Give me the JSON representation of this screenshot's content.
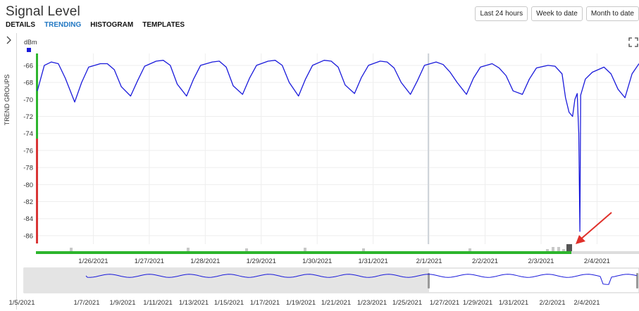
{
  "header": {
    "title": "Signal Level",
    "tabs": [
      {
        "label": "DETAILS",
        "active": false
      },
      {
        "label": "TRENDING",
        "active": true
      },
      {
        "label": "HISTOGRAM",
        "active": false
      },
      {
        "label": "TEMPLATES",
        "active": false
      }
    ],
    "range_buttons": [
      "Last 24 hours",
      "Week to date",
      "Month to date"
    ]
  },
  "side_panel": {
    "label": "TREND GROUPS",
    "icon": "chevron-right-icon"
  },
  "expand_icon": "fullscreen-icon",
  "colors": {
    "series": "#1a1adb",
    "status_good": "#2db52d",
    "status_bad": "#d93535",
    "annotation_arrow": "#e0302a",
    "grid": "#eeeeee",
    "navigator_shade": "#e4e4e4"
  },
  "chart_data": [
    {
      "type": "line",
      "title": "",
      "ylabel": "dBm",
      "xlabel": "",
      "grid": true,
      "ylim": [
        -87,
        -64.6
      ],
      "y_ticks": [
        -66,
        -68,
        -70,
        -72,
        -74,
        -76,
        -78,
        -80,
        -82,
        -84,
        -86
      ],
      "x_range": [
        "2021-01-25",
        "2021-02-04 18:00"
      ],
      "x_ticks": [
        "1/26/2021",
        "1/27/2021",
        "1/28/2021",
        "1/29/2021",
        "1/30/2021",
        "1/31/2021",
        "2/1/2021",
        "2/2/2021",
        "2/3/2021",
        "2/4/2021"
      ],
      "series": [
        {
          "x": [
            "2021-01-25 00:00",
            "2021-01-25 03:00",
            "2021-01-25 06:00",
            "2021-01-25 09:00",
            "2021-01-25 12:00",
            "2021-01-25 16:00",
            "2021-01-25 19:00",
            "2021-01-25 22:00",
            "2021-01-26 03:00",
            "2021-01-26 06:00",
            "2021-01-26 09:00",
            "2021-01-26 12:00",
            "2021-01-26 16:00",
            "2021-01-26 19:00",
            "2021-01-26 22:00",
            "2021-01-27 03:00",
            "2021-01-27 06:00",
            "2021-01-27 09:00",
            "2021-01-27 12:00",
            "2021-01-27 16:00",
            "2021-01-27 19:00",
            "2021-01-27 22:00",
            "2021-01-28 03:00",
            "2021-01-28 06:00",
            "2021-01-28 09:00",
            "2021-01-28 12:00",
            "2021-01-28 16:00",
            "2021-01-28 19:00",
            "2021-01-28 22:00",
            "2021-01-29 03:00",
            "2021-01-29 06:00",
            "2021-01-29 09:00",
            "2021-01-29 12:00",
            "2021-01-29 16:00",
            "2021-01-29 19:00",
            "2021-01-29 22:00",
            "2021-01-30 03:00",
            "2021-01-30 06:00",
            "2021-01-30 09:00",
            "2021-01-30 12:00",
            "2021-01-30 16:00",
            "2021-01-30 19:00",
            "2021-01-30 22:00",
            "2021-01-31 03:00",
            "2021-01-31 06:00",
            "2021-01-31 09:00",
            "2021-01-31 12:00",
            "2021-01-31 16:00",
            "2021-01-31 19:00",
            "2021-01-31 22:00",
            "2021-02-01 03:00",
            "2021-02-01 06:00",
            "2021-02-01 09:00",
            "2021-02-01 12:00",
            "2021-02-01 16:00",
            "2021-02-01 19:00",
            "2021-02-01 22:00",
            "2021-02-02 03:00",
            "2021-02-02 06:00",
            "2021-02-02 09:00",
            "2021-02-02 12:00",
            "2021-02-02 16:00",
            "2021-02-02 19:00",
            "2021-02-02 22:00",
            "2021-02-03 03:00",
            "2021-02-03 06:00",
            "2021-02-03 09:00",
            "2021-02-03 10:30",
            "2021-02-03 12:00",
            "2021-02-03 13:30",
            "2021-02-03 14:30",
            "2021-02-03 15:30",
            "2021-02-03 16:10",
            "2021-02-03 16:40",
            "2021-02-03 17:00",
            "2021-02-03 19:00",
            "2021-02-03 22:00",
            "2021-02-04 03:00",
            "2021-02-04 06:00",
            "2021-02-04 09:00",
            "2021-02-04 12:00",
            "2021-02-04 15:00",
            "2021-02-04 18:00"
          ],
          "values": [
            -69.0,
            -66.0,
            -65.6,
            -65.8,
            -67.5,
            -70.3,
            -68.0,
            -66.2,
            -65.8,
            -65.8,
            -66.5,
            -68.5,
            -69.6,
            -67.8,
            -66.1,
            -65.5,
            -65.4,
            -66.0,
            -68.2,
            -69.6,
            -67.6,
            -66.0,
            -65.6,
            -65.5,
            -66.2,
            -68.4,
            -69.4,
            -67.5,
            -66.0,
            -65.5,
            -65.4,
            -66.0,
            -68.0,
            -69.6,
            -67.6,
            -66.0,
            -65.4,
            -65.5,
            -66.2,
            -68.3,
            -69.3,
            -67.4,
            -66.0,
            -65.5,
            -65.6,
            -66.3,
            -68.0,
            -69.4,
            -67.8,
            -66.0,
            -65.6,
            -65.9,
            -66.8,
            -68.0,
            -69.4,
            -67.5,
            -66.2,
            -65.8,
            -66.3,
            -67.2,
            -69.0,
            -69.4,
            -67.6,
            -66.3,
            -66.0,
            -66.1,
            -67.0,
            -69.8,
            -71.5,
            -72.0,
            -70.0,
            -69.3,
            -74.0,
            -85.5,
            -69.5,
            -67.6,
            -66.8,
            -66.2,
            -67.0,
            -68.8,
            -69.8,
            -67.0,
            -65.8
          ]
        }
      ]
    },
    {
      "type": "area",
      "title": "",
      "x_ticks": [
        "1/5/2021",
        "1/7/2021",
        "1/9/2021",
        "1/11/2021",
        "1/13/2021",
        "1/15/2021",
        "1/17/2021",
        "1/19/2021",
        "1/21/2021",
        "1/23/2021",
        "1/25/2021",
        "1/27/2021",
        "1/29/2021",
        "1/31/2021",
        "2/2/2021",
        "2/4/2021"
      ]
    }
  ]
}
